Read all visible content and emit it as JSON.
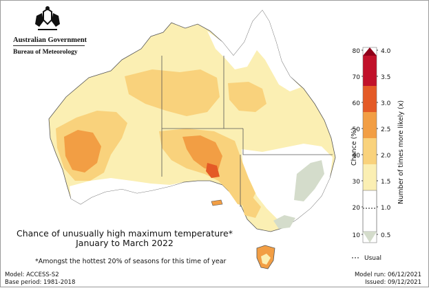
{
  "header": {
    "government": "Australian Government",
    "bureau": "Bureau of Meteorology"
  },
  "map": {
    "title_line1": "Chance of unusually high maximum temperature*",
    "title_line2": "January to March 2022",
    "footnote": "*Amongst the hottest 20% of seasons for this time of year"
  },
  "legend": {
    "left_axis_title": "Chance (%)",
    "right_axis_title": "Number of times more likely (x)",
    "chance_ticks": [
      "80",
      "70",
      "60",
      "50",
      "40",
      "30",
      "20",
      "10"
    ],
    "likely_ticks": [
      "4.0",
      "3.5",
      "3.0",
      "2.5",
      "2.0",
      "1.5",
      "1.0",
      "0.5"
    ],
    "usual_label": "Usual",
    "colors": [
      "#d4dccb",
      "#ffffff",
      "#fbefb3",
      "#f9d27c",
      "#f29e44",
      "#e45a26",
      "#c1112a",
      "#900019"
    ]
  },
  "footer": {
    "model": "Model: ACCESS-S2",
    "base_period": "Base period: 1981-2018",
    "model_run": "Model run: 06/12/2021",
    "issued": "Issued: 09/12/2021"
  }
}
